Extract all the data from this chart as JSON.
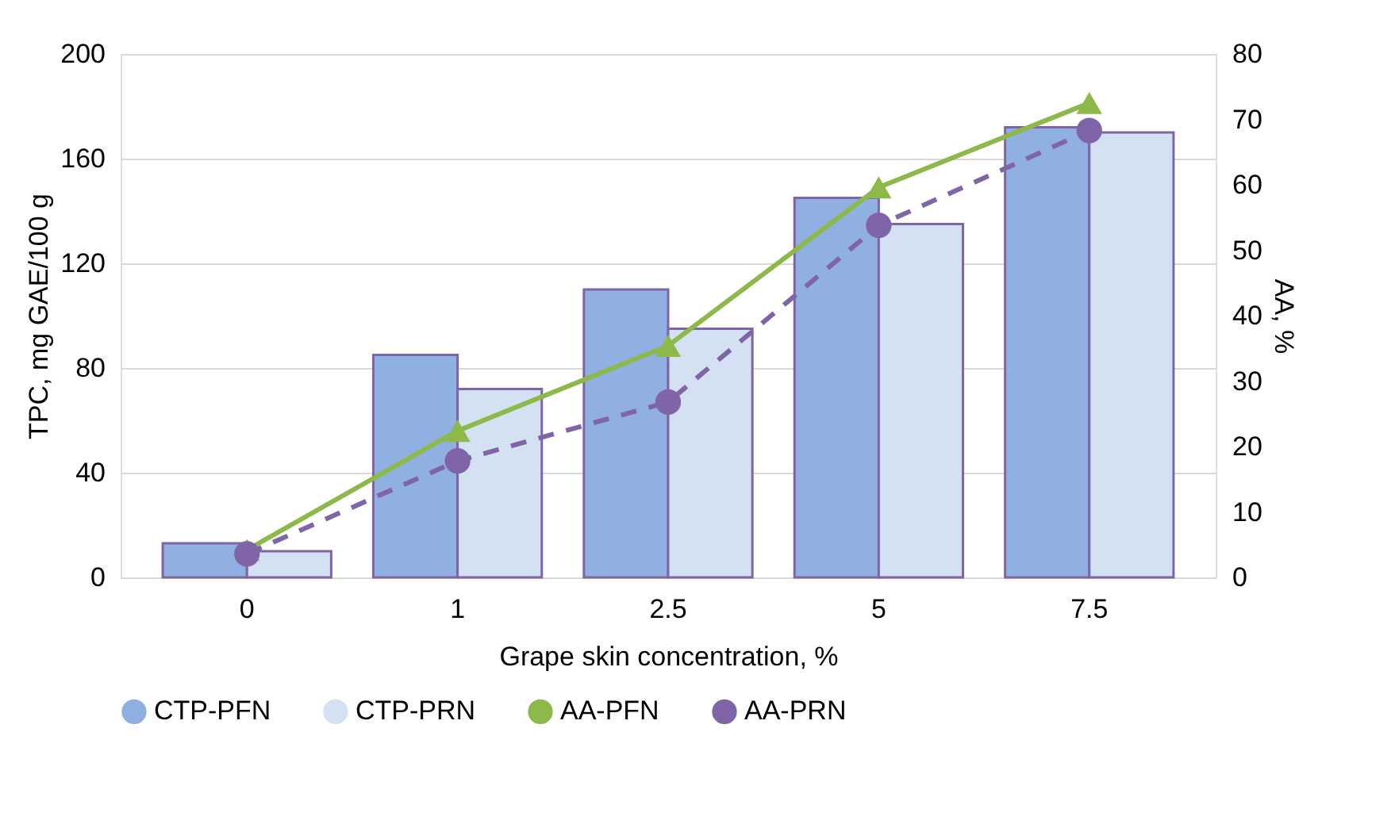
{
  "chart_data": {
    "type": "bar",
    "xlabel": "Grape skin concentration, %",
    "ylabel": "TPC, mg GAE/100 g",
    "y2label": "AA, %",
    "categories": [
      "0",
      "1",
      "2.5",
      "5",
      "7.5"
    ],
    "series": [
      {
        "name": "CTP-PFN",
        "color": "#8fb0e0",
        "values": [
          13,
          85,
          110,
          145,
          172
        ]
      },
      {
        "name": "CTP-PRN",
        "color": "#d3e1f2",
        "values": [
          10,
          72,
          95,
          135,
          170
        ]
      },
      {
        "name": "AA-PFN",
        "type": "line",
        "axis": "y2",
        "color": "#8db94a",
        "marker": "triangle",
        "line_style": "solid",
        "values": [
          4.2,
          22.4,
          35.4,
          59.6,
          72.5
        ]
      },
      {
        "name": "AA-PRN",
        "type": "line",
        "axis": "y2",
        "color": "#7f64a8",
        "marker": "circle",
        "line_style": "dashed",
        "values": [
          3.6,
          17.8,
          26.8,
          53.8,
          68.3
        ]
      }
    ],
    "ylim": [
      0,
      200
    ],
    "yticks": [
      0,
      40,
      80,
      120,
      160,
      200
    ],
    "y2lim": [
      0,
      80
    ],
    "y2ticks": [
      0,
      10,
      20,
      30,
      40,
      50,
      60,
      70,
      80
    ],
    "grid": "y",
    "legend": "bottom"
  }
}
